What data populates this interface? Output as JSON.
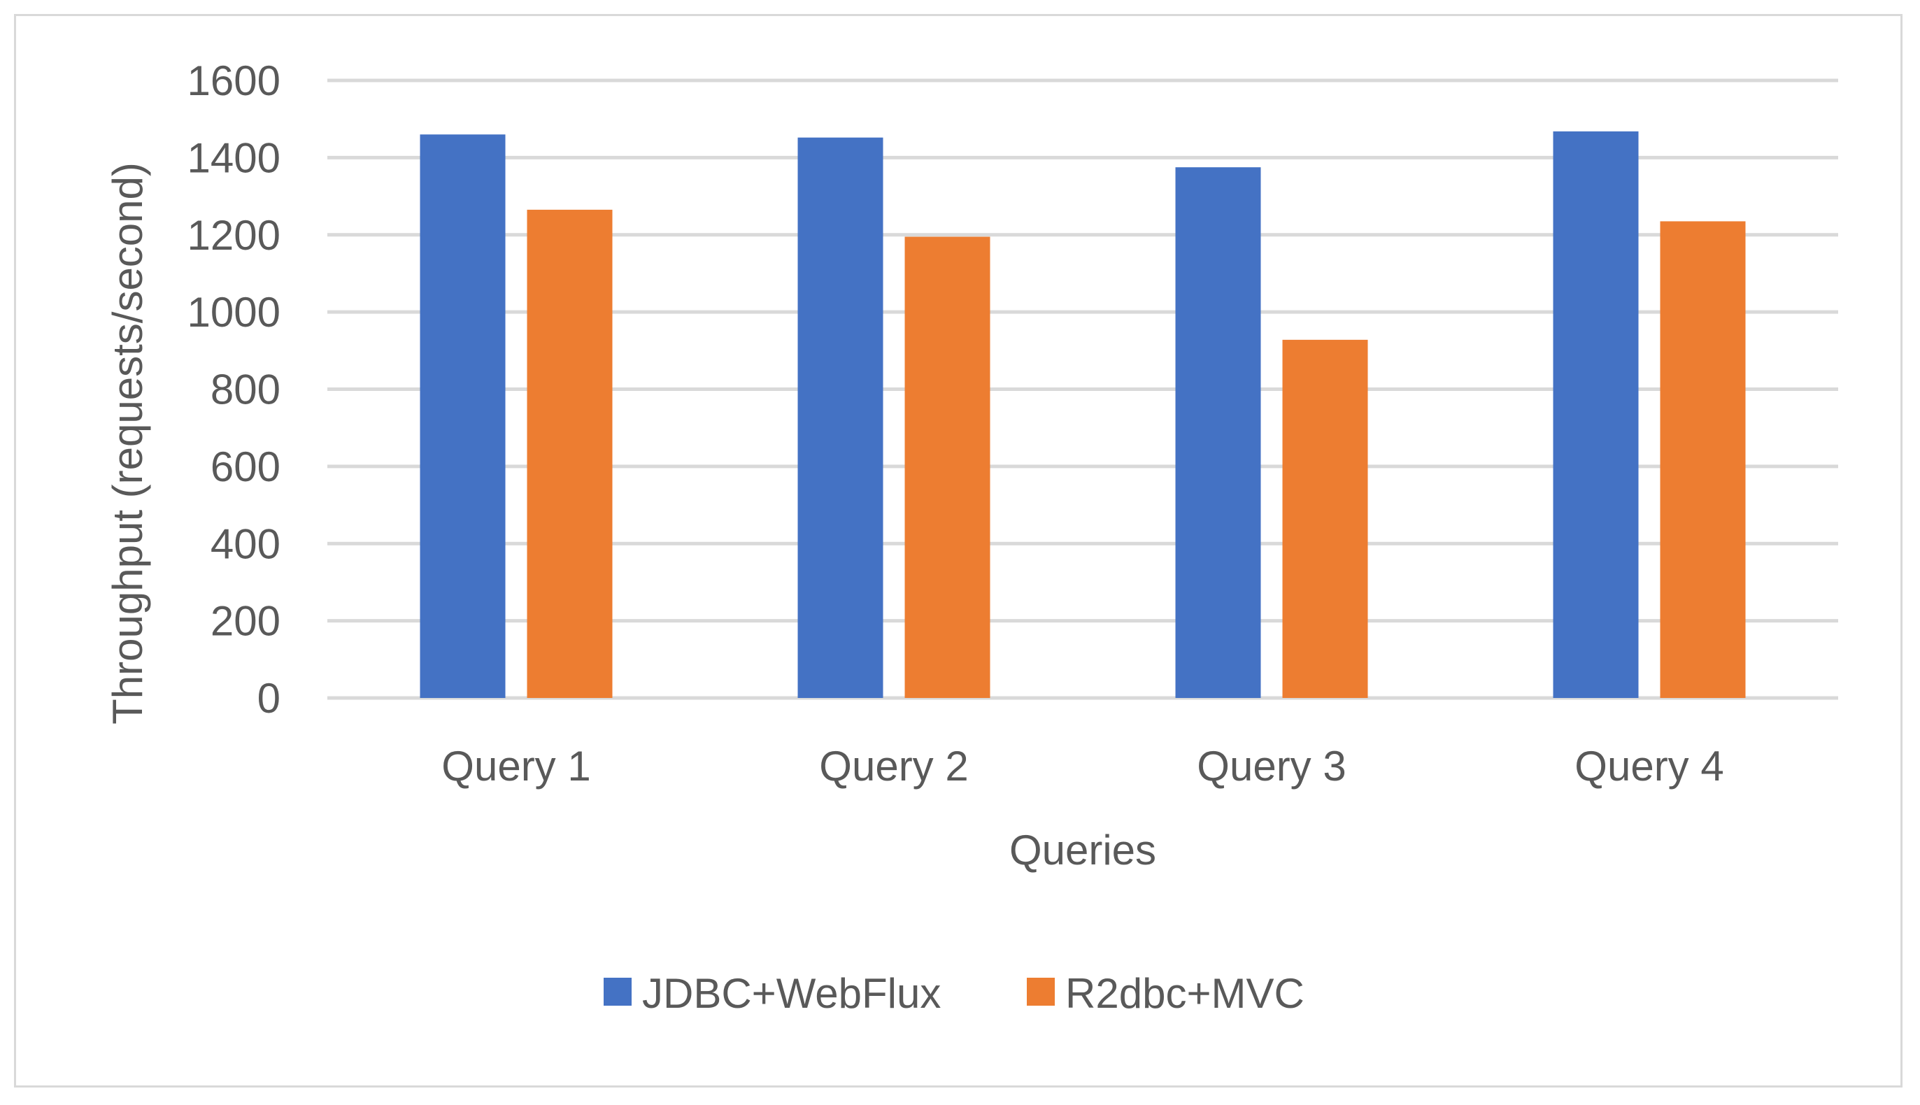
{
  "chart_data": {
    "type": "bar",
    "title": "",
    "xlabel": "Queries",
    "ylabel": "Throughput (requests/second)",
    "categories": [
      "Query 1",
      "Query 2",
      "Query 3",
      "Query 4"
    ],
    "series": [
      {
        "name": "JDBC+WebFlux",
        "color": "#4472c4",
        "values": [
          1460,
          1452,
          1375,
          1468
        ]
      },
      {
        "name": "R2dbc+MVC",
        "color": "#ed7d31",
        "values": [
          1265,
          1195,
          928,
          1235
        ]
      }
    ],
    "ylim": [
      0,
      1600
    ],
    "yticks": [
      "0",
      "200",
      "400",
      "600",
      "800",
      "1000",
      "1200",
      "1400",
      "1600"
    ],
    "grid": true,
    "legend_position": "bottom"
  }
}
